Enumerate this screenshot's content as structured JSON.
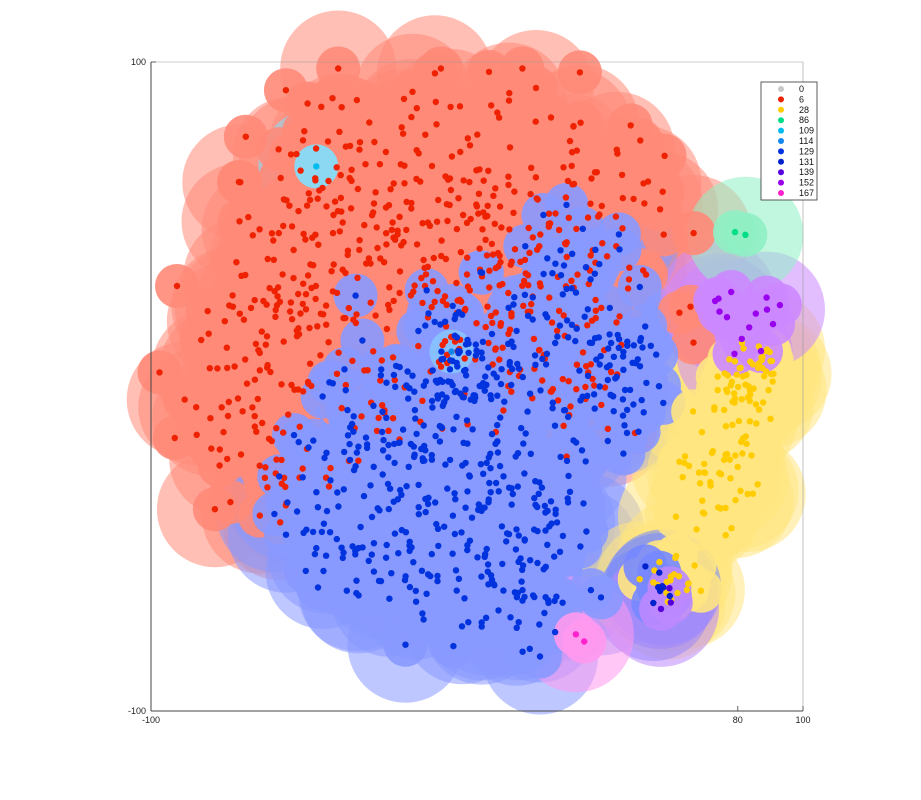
{
  "chart_data": {
    "type": "scatter",
    "title": "",
    "xlabel": "",
    "ylabel": "",
    "xlim": [
      -100,
      100
    ],
    "ylim": [
      -100,
      100
    ],
    "x_ticks": [
      {
        "value": -100,
        "label": "-100"
      },
      {
        "value": 80,
        "label": "80"
      },
      {
        "value": 100,
        "label": "100"
      }
    ],
    "y_ticks": [
      {
        "value": 100,
        "label": "100"
      },
      {
        "value": -100,
        "label": "-100"
      }
    ],
    "grid": false,
    "legend_position": "top-right",
    "series": [
      {
        "name": "0",
        "color": "#c8c8c8",
        "halo": "#e6e6e6",
        "count": 0,
        "centers": []
      },
      {
        "name": "6",
        "color": "#ee2200",
        "halo": "#ff8a78",
        "count": 620,
        "centers": [
          [
            -5,
            62,
            26
          ],
          [
            -45,
            60,
            16
          ],
          [
            30,
            55,
            18
          ],
          [
            -70,
            15,
            14
          ],
          [
            -50,
            30,
            16
          ],
          [
            -25,
            45,
            16
          ],
          [
            10,
            35,
            14
          ],
          [
            40,
            30,
            12
          ],
          [
            -70,
            -15,
            12
          ],
          [
            -40,
            0,
            14
          ],
          [
            -10,
            20,
            12
          ],
          [
            15,
            5,
            10
          ],
          [
            35,
            0,
            8
          ],
          [
            -60,
            -30,
            8
          ]
        ]
      },
      {
        "name": "28",
        "color": "#ffcc00",
        "halo": "#ffe680",
        "count": 130,
        "centers": [
          [
            78,
            -10,
            6
          ],
          [
            82,
            0,
            6
          ],
          [
            74,
            -25,
            7
          ],
          [
            72,
            -40,
            5
          ],
          [
            60,
            -60,
            5
          ],
          [
            85,
            8,
            4
          ]
        ]
      },
      {
        "name": "86",
        "color": "#00dd88",
        "halo": "#8ff0c4",
        "count": 2,
        "centers": [
          [
            81,
            48,
            2
          ]
        ]
      },
      {
        "name": "109",
        "color": "#00bbee",
        "halo": "#80e0ff",
        "count": 1,
        "centers": [
          [
            -49,
            68,
            1
          ]
        ]
      },
      {
        "name": "114",
        "color": "#1188ee",
        "halo": "#88c4ff",
        "count": 1,
        "centers": [
          [
            -9,
            11,
            1
          ]
        ]
      },
      {
        "name": "129",
        "color": "#0033dd",
        "halo": "#8899ff",
        "count": 560,
        "centers": [
          [
            0,
            5,
            16
          ],
          [
            -2,
            8,
            6
          ],
          [
            -30,
            -20,
            14
          ],
          [
            0,
            -30,
            14
          ],
          [
            -20,
            -55,
            12
          ],
          [
            20,
            -45,
            12
          ],
          [
            35,
            -10,
            10
          ],
          [
            30,
            30,
            12
          ],
          [
            -45,
            -45,
            10
          ],
          [
            5,
            -65,
            10
          ],
          [
            45,
            10,
            8
          ],
          [
            20,
            -70,
            6
          ]
        ]
      },
      {
        "name": "131",
        "color": "#0022cc",
        "halo": "#7788ff",
        "count": 8,
        "centers": [
          [
            55,
            -62,
            4
          ],
          [
            55,
            -78,
            2
          ]
        ]
      },
      {
        "name": "139",
        "color": "#5500dd",
        "halo": "#bb88ff",
        "count": 3,
        "centers": [
          [
            58,
            -65,
            2
          ]
        ]
      },
      {
        "name": "152",
        "color": "#9900ee",
        "halo": "#cc88ff",
        "count": 14,
        "centers": [
          [
            83,
            20,
            6
          ],
          [
            72,
            24,
            3
          ]
        ]
      },
      {
        "name": "167",
        "color": "#ff22cc",
        "halo": "#ff99ee",
        "count": 2,
        "centers": [
          [
            30,
            -77,
            1
          ]
        ]
      }
    ]
  }
}
